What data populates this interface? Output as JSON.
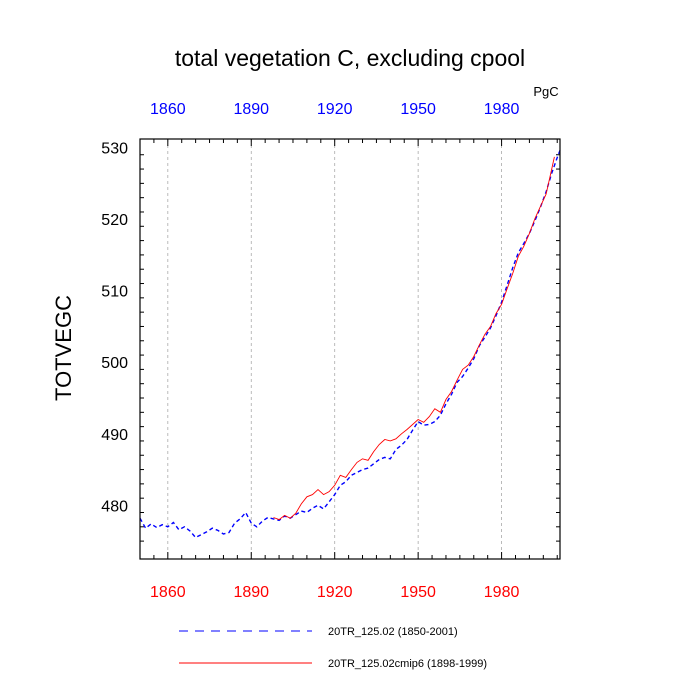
{
  "chart_data": {
    "type": "line",
    "title": "total vegetation C, excluding cpool",
    "units": "PgC",
    "xlabel": "",
    "ylabel": "TOTVEGC",
    "xlim": [
      1850,
      2001
    ],
    "ylim": [
      472.5,
      531.2
    ],
    "x_ticks": [
      1860,
      1890,
      1920,
      1950,
      1980
    ],
    "y_ticks": [
      480,
      490,
      500,
      510,
      520,
      530
    ],
    "grid": "vertical dashed at x ticks",
    "colors": {
      "top_ticks": "#0000ff",
      "bottom_ticks": "#ff0000",
      "series_a": "#0000ff",
      "series_b": "#ff0000",
      "grid": "#aaaaaa"
    },
    "series": [
      {
        "name": "20TR_125.02 (1850-2001)",
        "style": "dashed",
        "x": [
          1850,
          1852,
          1854,
          1856,
          1858,
          1860,
          1862,
          1864,
          1866,
          1868,
          1870,
          1872,
          1874,
          1876,
          1878,
          1880,
          1882,
          1884,
          1886,
          1888,
          1890,
          1892,
          1894,
          1896,
          1898,
          1900,
          1902,
          1904,
          1906,
          1908,
          1910,
          1912,
          1914,
          1916,
          1918,
          1920,
          1922,
          1924,
          1926,
          1928,
          1930,
          1932,
          1934,
          1936,
          1938,
          1940,
          1942,
          1944,
          1946,
          1948,
          1950,
          1952,
          1954,
          1956,
          1958,
          1960,
          1962,
          1964,
          1966,
          1968,
          1970,
          1972,
          1974,
          1976,
          1978,
          1980,
          1982,
          1984,
          1986,
          1988,
          1990,
          1992,
          1994,
          1996,
          1998,
          2000,
          2001
        ],
        "values": [
          478.2,
          476.8,
          477.4,
          476.9,
          477.3,
          477.0,
          477.6,
          476.6,
          477.0,
          476.4,
          475.5,
          475.9,
          476.3,
          476.8,
          476.5,
          476.0,
          476.2,
          477.5,
          478.1,
          479.0,
          477.5,
          477.0,
          477.8,
          478.3,
          478.1,
          477.9,
          478.5,
          478.2,
          478.7,
          479.2,
          479.0,
          479.6,
          480.0,
          479.5,
          480.5,
          481.5,
          482.8,
          483.3,
          484.2,
          484.6,
          485.0,
          485.2,
          485.8,
          486.4,
          486.7,
          486.5,
          487.8,
          488.4,
          489.2,
          490.5,
          491.7,
          491.2,
          491.3,
          491.7,
          492.6,
          494.2,
          495.5,
          497.2,
          498.0,
          499.2,
          500.5,
          502.3,
          503.5,
          504.8,
          506.5,
          508.4,
          510.8,
          513.2,
          515.3,
          516.6,
          518.0,
          519.8,
          521.7,
          523.8,
          526.4,
          528.6,
          529.6
        ]
      },
      {
        "name": "20TR_125.02cmip6 (1898-1999)",
        "style": "solid",
        "x": [
          1898,
          1900,
          1902,
          1904,
          1906,
          1908,
          1910,
          1912,
          1914,
          1916,
          1918,
          1920,
          1922,
          1924,
          1926,
          1928,
          1930,
          1932,
          1934,
          1936,
          1938,
          1940,
          1942,
          1944,
          1946,
          1948,
          1950,
          1952,
          1954,
          1956,
          1958,
          1960,
          1962,
          1964,
          1966,
          1968,
          1970,
          1972,
          1974,
          1976,
          1978,
          1980,
          1982,
          1984,
          1986,
          1988,
          1990,
          1992,
          1994,
          1996,
          1998,
          1999
        ],
        "values": [
          478.3,
          478.0,
          478.6,
          478.2,
          478.9,
          480.2,
          481.2,
          481.5,
          482.2,
          481.5,
          481.9,
          482.8,
          484.2,
          483.9,
          485.0,
          486.0,
          486.5,
          486.3,
          487.5,
          488.5,
          489.2,
          489.0,
          489.3,
          490.0,
          490.6,
          491.3,
          492.0,
          491.6,
          492.4,
          493.5,
          493.0,
          494.8,
          495.9,
          497.5,
          499.0,
          499.6,
          500.8,
          502.4,
          503.9,
          505.0,
          506.8,
          508.1,
          510.3,
          512.4,
          514.8,
          516.2,
          518.0,
          520.1,
          521.8,
          523.5,
          527.0,
          528.7
        ]
      }
    ]
  }
}
